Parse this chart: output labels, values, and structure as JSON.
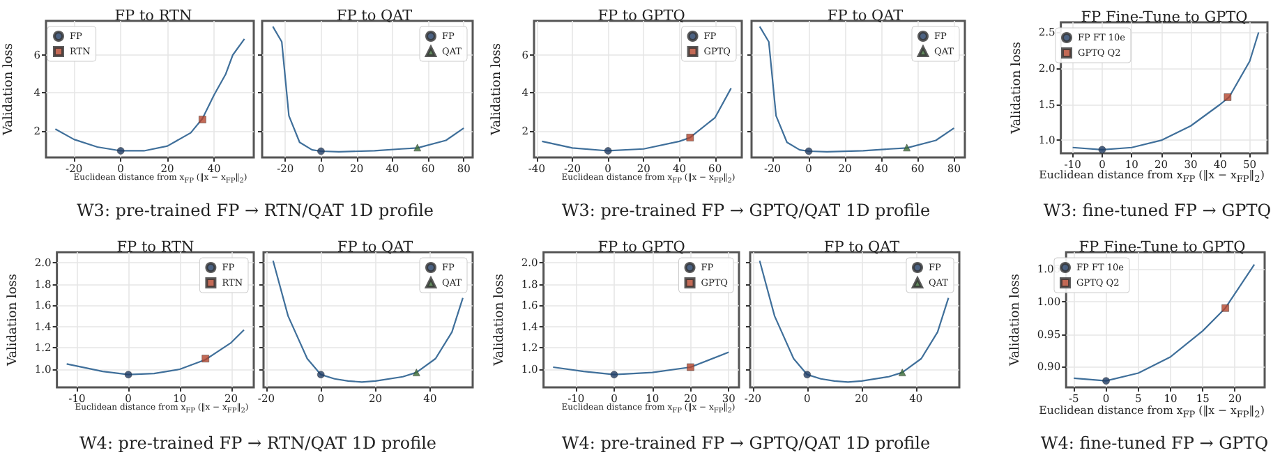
{
  "chart_data": [
    {
      "type": "line",
      "title": "FP to RTN",
      "ylabel": "Validation loss",
      "xlabel": "Euclidean distance from x$_{FP}$ (‖x − x$_{FP}$‖$_{2}$)",
      "annotations": [
        "W3: pre-trained FP → RTN/QAT 1D profile"
      ],
      "xlim": [
        -32,
        57
      ],
      "xticks": [
        -20,
        0,
        20,
        40
      ],
      "ylim": [
        0.6,
        7.8
      ],
      "yticks": [
        2,
        4,
        6
      ],
      "grid": true,
      "legend": "top left",
      "series": [
        {
          "color": "#3f6f9a",
          "x": [
            -28,
            -20,
            -10,
            0,
            10,
            20,
            30,
            35,
            40,
            45,
            48,
            53
          ],
          "values": [
            2.1,
            1.55,
            1.15,
            0.95,
            0.95,
            1.2,
            1.9,
            2.65,
            3.9,
            5.0,
            6.0,
            6.85
          ]
        },
        {
          "type": "scatter",
          "name": "FP",
          "color": "#1f3b63",
          "marker": "circle",
          "x": [
            0
          ],
          "values": [
            0.95
          ]
        },
        {
          "type": "scatter",
          "name": "RTN",
          "color": "#b5452c",
          "marker": "square",
          "x": [
            35
          ],
          "values": [
            2.6
          ]
        }
      ]
    },
    {
      "type": "line",
      "title": "FP to QAT",
      "xlim": [
        -33,
        85
      ],
      "xticks": [
        -20,
        0,
        20,
        40,
        60,
        80
      ],
      "ylim": [
        0.6,
        7.8
      ],
      "yticks": [
        2,
        4,
        6
      ],
      "tick_labels": "x",
      "grid": true,
      "legend": "top right",
      "series": [
        {
          "color": "#3f6f9a",
          "x": [
            -27,
            -22,
            -18,
            -12,
            -5,
            0,
            10,
            30,
            45,
            54,
            70,
            80
          ],
          "values": [
            7.5,
            6.7,
            2.8,
            1.4,
            1.0,
            0.93,
            0.9,
            0.95,
            1.05,
            1.1,
            1.5,
            2.15
          ]
        },
        {
          "type": "scatter",
          "name": "FP",
          "color": "#1f3b63",
          "marker": "circle",
          "x": [
            0
          ],
          "values": [
            0.93
          ]
        },
        {
          "type": "scatter",
          "name": "QAT",
          "color": "#3a6b35",
          "marker": "triangle",
          "x": [
            54
          ],
          "values": [
            1.12
          ]
        }
      ]
    },
    {
      "type": "line",
      "title": "FP to GPTQ",
      "ylabel": "Validation loss",
      "xlabel": "Euclidean distance from x$_{FP}$ (‖x − x$_{FP}$‖$_{2}$)",
      "annotations": [
        "W3: pre-trained FP → GPTQ/QAT 1D profile"
      ],
      "xlim": [
        -41.5,
        75
      ],
      "xticks": [
        -40,
        -20,
        0,
        20,
        40,
        60
      ],
      "ylim": [
        0.6,
        7.8
      ],
      "yticks": [
        2,
        4,
        6
      ],
      "grid": true,
      "legend": "top right",
      "series": [
        {
          "color": "#3f6f9a",
          "x": [
            -37,
            -20,
            0,
            20,
            40,
            46,
            60,
            69
          ],
          "values": [
            1.45,
            1.1,
            0.95,
            1.05,
            1.45,
            1.65,
            2.7,
            4.25
          ]
        },
        {
          "type": "scatter",
          "name": "FP",
          "color": "#1f3b63",
          "marker": "circle",
          "x": [
            0
          ],
          "values": [
            0.95
          ]
        },
        {
          "type": "scatter",
          "name": "GPTQ",
          "color": "#b5452c",
          "marker": "square",
          "x": [
            46
          ],
          "values": [
            1.65
          ]
        }
      ]
    },
    {
      "type": "line",
      "title": "FP to QAT",
      "xlim": [
        -31.5,
        86
      ],
      "xticks": [
        -20,
        0,
        20,
        40,
        60,
        80
      ],
      "ylim": [
        0.6,
        7.8
      ],
      "yticks": [
        2,
        4,
        6
      ],
      "tick_labels": "x",
      "grid": true,
      "legend": "top right",
      "series": [
        {
          "color": "#3f6f9a",
          "x": [
            -27,
            -22,
            -18,
            -12,
            -5,
            0,
            10,
            30,
            45,
            54,
            70,
            80
          ],
          "values": [
            7.5,
            6.7,
            2.8,
            1.4,
            1.0,
            0.93,
            0.9,
            0.95,
            1.05,
            1.1,
            1.5,
            2.15
          ]
        },
        {
          "type": "scatter",
          "name": "FP",
          "color": "#1f3b63",
          "marker": "circle",
          "x": [
            0
          ],
          "values": [
            0.93
          ]
        },
        {
          "type": "scatter",
          "name": "QAT",
          "color": "#3a6b35",
          "marker": "triangle",
          "x": [
            54
          ],
          "values": [
            1.12
          ]
        }
      ]
    },
    {
      "type": "line",
      "title": "FP Fine-Tune to GPTQ",
      "ylabel": "Validation loss",
      "xlabel": "Euclidean distance from x$_{FP}$ (‖x − x$_{FP}$‖$_{2}$)",
      "annotations": [
        "W3: fine-tuned FP → GPTQ"
      ],
      "xlim": [
        -14,
        56
      ],
      "xticks": [
        -10,
        0,
        10,
        20,
        30,
        40,
        50
      ],
      "ylim": [
        0.82,
        2.64
      ],
      "yticks": [
        {
          "value": 1,
          "label": "1.0"
        },
        1.5,
        {
          "value": 2,
          "label": "2.0"
        },
        2.5
      ],
      "grid": true,
      "legend": "top left",
      "series": [
        {
          "color": "#3f6f9a",
          "x": [
            -10,
            0,
            10,
            20,
            30,
            40,
            43,
            50,
            53
          ],
          "values": [
            0.9,
            0.87,
            0.9,
            1.0,
            1.2,
            1.5,
            1.6,
            2.1,
            2.5
          ]
        },
        {
          "type": "scatter",
          "name": "FP FT 10e",
          "color": "#1f3b63",
          "marker": "circle",
          "x": [
            0
          ],
          "values": [
            0.87
          ]
        },
        {
          "type": "scatter",
          "name": "GPTQ Q2",
          "color": "#b5452c",
          "marker": "square",
          "x": [
            42.5
          ],
          "values": [
            1.6
          ]
        }
      ]
    },
    {
      "type": "line",
      "title": "FP to RTN",
      "ylabel": "Validation loss",
      "xlabel": "Euclidean distance from x$_{FP}$ (‖x − x$_{FP}$‖$_{2}$)",
      "annotations": [
        "W4: pre-trained FP → RTN/QAT 1D profile"
      ],
      "xlim": [
        -13.9,
        24.4
      ],
      "xticks": [
        -10,
        0,
        10,
        20
      ],
      "ylim": [
        0.83,
        2.1
      ],
      "yticks": [
        {
          "value": 1,
          "label": "1.0"
        },
        1.2,
        1.4,
        1.6,
        1.8,
        {
          "value": 2,
          "label": "2.0"
        }
      ],
      "grid": true,
      "legend": "top right",
      "series": [
        {
          "color": "#3f6f9a",
          "x": [
            -12,
            -5,
            0,
            5,
            10,
            15,
            20,
            22.5
          ],
          "values": [
            1.05,
            0.98,
            0.95,
            0.96,
            1.0,
            1.09,
            1.25,
            1.37
          ]
        },
        {
          "type": "scatter",
          "name": "FP",
          "color": "#1f3b63",
          "marker": "circle",
          "x": [
            0
          ],
          "values": [
            0.95
          ]
        },
        {
          "type": "scatter",
          "name": "RTN",
          "color": "#b5452c",
          "marker": "square",
          "x": [
            15
          ],
          "values": [
            1.1
          ]
        }
      ]
    },
    {
      "type": "line",
      "title": "FP to QAT",
      "xlim": [
        -21,
        55.6
      ],
      "xticks": [
        -20,
        0,
        20,
        40
      ],
      "ylim": [
        0.83,
        2.1
      ],
      "yticks": [
        1,
        1.2,
        1.4,
        1.6,
        1.8,
        2
      ],
      "tick_labels": "x",
      "grid": true,
      "legend": "top right",
      "series": [
        {
          "color": "#3f6f9a",
          "x": [
            -17.5,
            -12,
            -5,
            0,
            5,
            10,
            15,
            20,
            30,
            35,
            42,
            48,
            52
          ],
          "values": [
            2.02,
            1.5,
            1.1,
            0.95,
            0.91,
            0.89,
            0.88,
            0.89,
            0.93,
            0.97,
            1.1,
            1.35,
            1.67
          ]
        },
        {
          "type": "scatter",
          "name": "FP",
          "color": "#1f3b63",
          "marker": "circle",
          "x": [
            0
          ],
          "values": [
            0.95
          ]
        },
        {
          "type": "scatter",
          "name": "QAT",
          "color": "#3a6b35",
          "marker": "triangle",
          "x": [
            35
          ],
          "values": [
            0.97
          ]
        }
      ]
    },
    {
      "type": "line",
      "title": "FP to GPTQ",
      "ylabel": "Validation loss",
      "xlabel": "Euclidean distance from x$_{FP}$ (‖x − x$_{FP}$‖$_{2}$)",
      "annotations": [
        "W4: pre-trained FP → GPTQ/QAT 1D profile"
      ],
      "xlim": [
        -18.5,
        32.7
      ],
      "xticks": [
        -10,
        0,
        10,
        20,
        30
      ],
      "ylim": [
        0.83,
        2.1
      ],
      "yticks": [
        {
          "value": 1,
          "label": "1.0"
        },
        1.2,
        1.4,
        1.6,
        1.8,
        {
          "value": 2,
          "label": "2.0"
        }
      ],
      "grid": true,
      "legend": "top right",
      "series": [
        {
          "color": "#3f6f9a",
          "x": [
            -16,
            -8,
            0,
            10,
            20,
            30
          ],
          "values": [
            1.02,
            0.98,
            0.95,
            0.97,
            1.02,
            1.16
          ]
        },
        {
          "type": "scatter",
          "name": "FP",
          "color": "#1f3b63",
          "marker": "circle",
          "x": [
            0
          ],
          "values": [
            0.95
          ]
        },
        {
          "type": "scatter",
          "name": "GPTQ",
          "color": "#b5452c",
          "marker": "square",
          "x": [
            20
          ],
          "values": [
            1.02
          ]
        }
      ]
    },
    {
      "type": "line",
      "title": "FP to QAT",
      "xlim": [
        -21,
        56
      ],
      "xticks": [
        -20,
        0,
        20,
        40
      ],
      "ylim": [
        0.83,
        2.1
      ],
      "yticks": [
        1,
        1.2,
        1.4,
        1.6,
        1.8,
        2
      ],
      "tick_labels": "x",
      "grid": true,
      "legend": "top right",
      "series": [
        {
          "color": "#3f6f9a",
          "x": [
            -17.5,
            -12,
            -5,
            0,
            5,
            10,
            15,
            20,
            30,
            35,
            42,
            48,
            52
          ],
          "values": [
            2.02,
            1.5,
            1.1,
            0.95,
            0.91,
            0.89,
            0.88,
            0.89,
            0.93,
            0.97,
            1.1,
            1.35,
            1.67
          ]
        },
        {
          "type": "scatter",
          "name": "FP",
          "color": "#1f3b63",
          "marker": "circle",
          "x": [
            0
          ],
          "values": [
            0.95
          ]
        },
        {
          "type": "scatter",
          "name": "QAT",
          "color": "#3a6b35",
          "marker": "triangle",
          "x": [
            35
          ],
          "values": [
            0.97
          ]
        }
      ]
    },
    {
      "type": "line",
      "title": "FP Fine-Tune to GPTQ",
      "ylabel": "Validation loss",
      "xlabel": "Euclidean distance from x$_{FP}$ (‖x − x$_{FP}$‖$_{2}$)",
      "annotations": [
        "W4: fine-tuned FP → GPTQ"
      ],
      "xlim": [
        -6.2,
        24.6
      ],
      "xticks": [
        -5,
        0,
        5,
        10,
        15,
        20
      ],
      "ylim": [
        0.868,
        1.076
      ],
      "yticks": [
        {
          "value": 0.9,
          "label": "0.90"
        },
        0.95,
        {
          "value": 1,
          "label": "1.00"
        },
        1.05
      ],
      "grid": true,
      "legend": "top left",
      "series": [
        {
          "color": "#3f6f9a",
          "x": [
            -5,
            0,
            5,
            10,
            15,
            18.5,
            23
          ],
          "values": [
            0.882,
            0.878,
            0.89,
            0.915,
            0.955,
            0.99,
            1.057
          ]
        },
        {
          "type": "scatter",
          "name": "FP FT 10e",
          "color": "#1f3b63",
          "marker": "circle",
          "x": [
            0
          ],
          "values": [
            0.878
          ]
        },
        {
          "type": "scatter",
          "name": "GPTQ Q2",
          "color": "#b5452c",
          "marker": "square",
          "x": [
            18.5
          ],
          "values": [
            0.99
          ]
        }
      ]
    }
  ]
}
